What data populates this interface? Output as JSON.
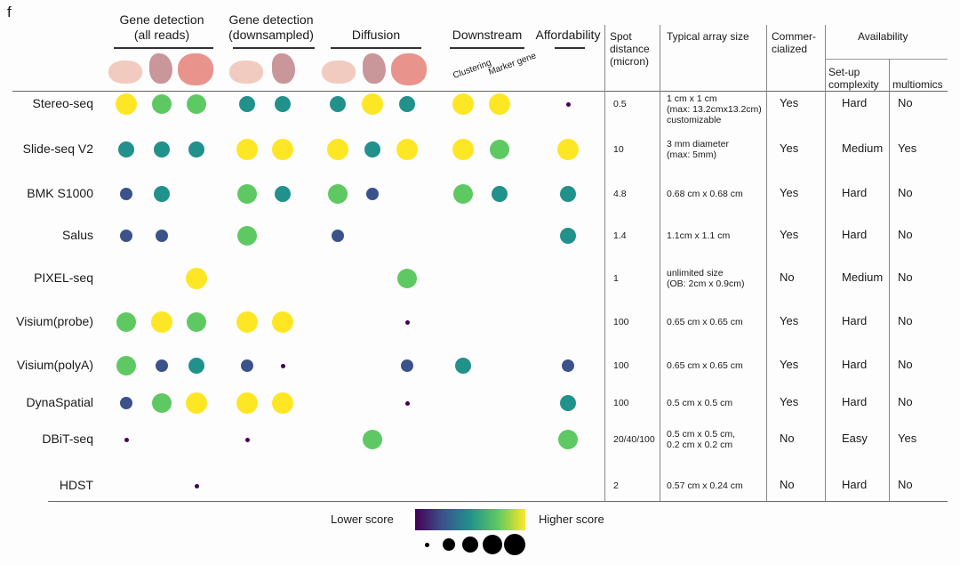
{
  "panel_label": "f",
  "chart_data": {
    "type": "dot-matrix",
    "groups": [
      {
        "name": "Gene detection (all reads)",
        "line1": "Gene detection",
        "line2": "(all reads)"
      },
      {
        "name": "Gene detection (downsampled)",
        "line1": "Gene detection",
        "line2": "(downsampled)"
      },
      {
        "name": "Diffusion",
        "line1": "Diffusion",
        "line2": ""
      },
      {
        "name": "Downstream",
        "line1": "Downstream",
        "line2": ""
      },
      {
        "name": "Affordability",
        "line1": "Affordability",
        "line2": ""
      }
    ],
    "sub_labels": {
      "clustering": "Clustering",
      "marker_gene": "Marker gene"
    },
    "score_columns": [
      "GD_all_1",
      "GD_all_2",
      "GD_all_3",
      "GD_down_1",
      "GD_down_2",
      "Diff_1",
      "Diff_2",
      "Diff_3",
      "Clustering",
      "Marker gene",
      "Affordability"
    ],
    "methods": [
      "Stereo-seq",
      "Slide-seq V2",
      "BMK S1000",
      "Salus",
      "PIXEL-seq",
      "Visium(probe)",
      "Visium(polyA)",
      "DynaSpatial",
      "DBiT-seq",
      "HDST"
    ],
    "scores": [
      [
        5,
        4,
        4,
        3,
        3,
        3,
        5,
        3,
        5,
        5,
        1
      ],
      [
        3,
        3,
        3,
        5,
        5,
        5,
        3,
        5,
        5,
        4,
        5
      ],
      [
        2,
        3,
        null,
        4,
        3,
        4,
        2,
        null,
        4,
        3,
        3
      ],
      [
        2,
        2,
        null,
        4,
        null,
        2,
        null,
        null,
        null,
        null,
        3
      ],
      [
        null,
        null,
        5,
        null,
        null,
        null,
        null,
        4,
        null,
        null,
        null
      ],
      [
        4,
        5,
        4,
        5,
        5,
        null,
        null,
        1,
        null,
        null,
        null
      ],
      [
        4,
        2,
        3,
        2,
        1,
        null,
        null,
        2,
        3,
        null,
        2
      ],
      [
        2,
        4,
        5,
        5,
        5,
        null,
        null,
        1,
        null,
        null,
        3
      ],
      [
        1,
        null,
        null,
        1,
        null,
        null,
        4,
        null,
        null,
        null,
        4
      ],
      [
        null,
        null,
        1,
        null,
        null,
        null,
        null,
        null,
        null,
        null,
        null
      ]
    ],
    "score_scale": "1 (lower) to 5 (higher); encoded as both color and dot size",
    "color_scale": [
      "#440154",
      "#3b528b",
      "#21918c",
      "#5ec962",
      "#fde725"
    ],
    "legend": {
      "low": "Lower score",
      "high": "Higher score"
    }
  },
  "table_headers": {
    "spot_distance": [
      "Spot",
      "distance",
      "(micron)"
    ],
    "array_size": "Typical array size",
    "commercialized": [
      "Commer-",
      "cialized"
    ],
    "availability": "Availability",
    "setup": [
      "Set-up",
      "complexity"
    ],
    "multiomics": "multiomics"
  },
  "table_rows": [
    {
      "spot": "0.5",
      "array": "1 cm x 1 cm\n(max: 13.2cmx13.2cm)\ncustomizable",
      "commercial": "Yes",
      "setup": "Hard",
      "multi": "No"
    },
    {
      "spot": "10",
      "array": "3 mm diameter\n(max: 5mm)",
      "commercial": "Yes",
      "setup": "Medium",
      "multi": "Yes"
    },
    {
      "spot": "4.8",
      "array": "0.68 cm x 0.68 cm",
      "commercial": "Yes",
      "setup": "Hard",
      "multi": "No"
    },
    {
      "spot": "1.4",
      "array": "1.1cm x 1.1 cm",
      "commercial": "Yes",
      "setup": "Hard",
      "multi": "No"
    },
    {
      "spot": "1",
      "array": "unlimited size\n(OB: 2cm x 0.9cm)",
      "commercial": "No",
      "setup": "Medium",
      "multi": "No"
    },
    {
      "spot": "100",
      "array": "0.65 cm x 0.65 cm",
      "commercial": "Yes",
      "setup": "Hard",
      "multi": "No"
    },
    {
      "spot": "100",
      "array": "0.65 cm x 0.65 cm",
      "commercial": "Yes",
      "setup": "Hard",
      "multi": "No"
    },
    {
      "spot": "100",
      "array": "0.5 cm x 0.5 cm",
      "commercial": "Yes",
      "setup": "Hard",
      "multi": "No"
    },
    {
      "spot": "20/40/100",
      "array": "0.5 cm x 0.5 cm,\n0.2 cm x 0.2 cm",
      "commercial": "No",
      "setup": "Easy",
      "multi": "Yes"
    },
    {
      "spot": "2",
      "array": "0.57 cm x 0.24 cm",
      "commercial": "No",
      "setup": "Hard",
      "multi": "No"
    }
  ]
}
